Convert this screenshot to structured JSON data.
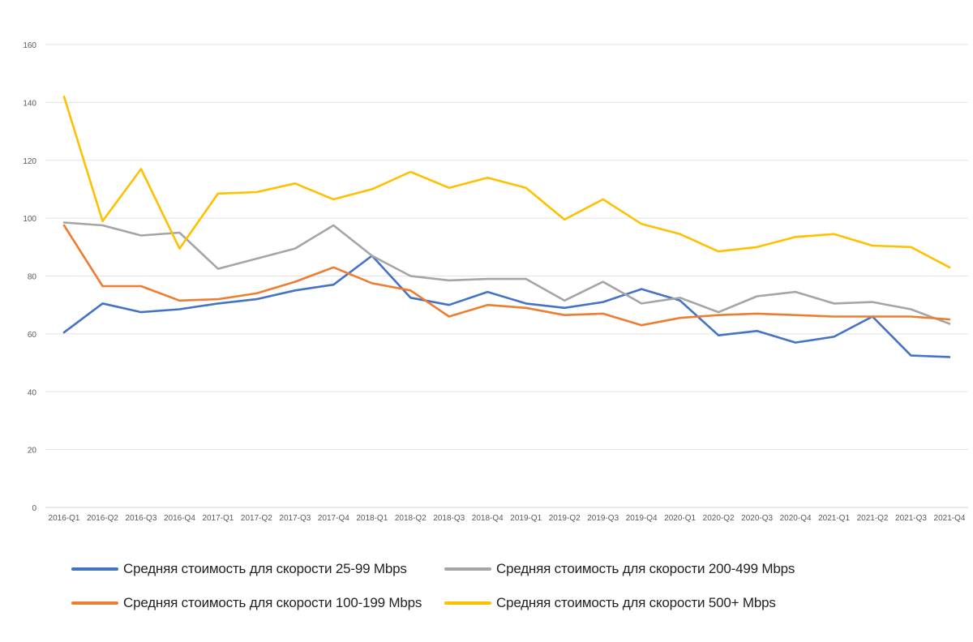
{
  "chart_data": {
    "type": "line",
    "title": "",
    "xlabel": "",
    "ylabel": "",
    "ylim": [
      0,
      160
    ],
    "yticks": [
      0,
      20,
      40,
      60,
      80,
      100,
      120,
      140,
      160
    ],
    "grid": true,
    "legend_position": "bottom",
    "categories": [
      "2016-Q1",
      "2016-Q2",
      "2016-Q3",
      "2016-Q4",
      "2017-Q1",
      "2017-Q2",
      "2017-Q3",
      "2017-Q4",
      "2018-Q1",
      "2018-Q2",
      "2018-Q3",
      "2018-Q4",
      "2019-Q1",
      "2019-Q2",
      "2019-Q3",
      "2019-Q4",
      "2020-Q1",
      "2020-Q2",
      "2020-Q3",
      "2020-Q4",
      "2021-Q1",
      "2021-Q2",
      "2021-Q3",
      "2021-Q4"
    ],
    "series": [
      {
        "name": "Средняя стоимость для скорости 25-99 Mbps",
        "color": "#4472c4",
        "values": [
          60.5,
          70.5,
          67.5,
          68.5,
          70.5,
          72,
          75,
          77,
          87,
          72.5,
          70,
          74.5,
          70.5,
          69,
          71,
          75.5,
          71.5,
          59.5,
          61,
          57,
          59,
          66,
          52.5,
          52
        ]
      },
      {
        "name": "Средняя стоимость для скорости 200-499 Mbps",
        "color": "#a5a5a5",
        "values": [
          98.5,
          97.5,
          94,
          95,
          82.5,
          86,
          89.5,
          97.5,
          87,
          80,
          78.5,
          79,
          79,
          71.5,
          78,
          70.5,
          72.5,
          67.5,
          73,
          74.5,
          70.5,
          71,
          68.5,
          63.5
        ]
      },
      {
        "name": "Средняя стоимость для скорости 100-199 Mbps",
        "color": "#ed7d31",
        "values": [
          97.5,
          76.5,
          76.5,
          71.5,
          72,
          74,
          78,
          83,
          77.5,
          75,
          66,
          70,
          69,
          66.5,
          67,
          63,
          65.5,
          66.5,
          67,
          66.5,
          66,
          66,
          66,
          65
        ]
      },
      {
        "name": "Средняя стоимость для скорости 500+ Mbps",
        "color": "#ffc000",
        "values": [
          142,
          99,
          117,
          89.5,
          108.5,
          109,
          112,
          106.5,
          110,
          116,
          110.5,
          114,
          110.5,
          99.5,
          106.5,
          98,
          94.5,
          88.5,
          90,
          93.5,
          94.5,
          90.5,
          90,
          83
        ]
      }
    ]
  },
  "legend": {
    "items": [
      {
        "label": "Средняя стоимость для скорости 25-99 Mbps",
        "color": "#4472c4"
      },
      {
        "label": "Средняя стоимость для скорости 200-499 Mbps",
        "color": "#a5a5a5"
      },
      {
        "label": "Средняя стоимость для скорости 100-199 Mbps",
        "color": "#ed7d31"
      },
      {
        "label": "Средняя стоимость для скорости 500+ Mbps",
        "color": "#ffc000"
      }
    ]
  }
}
